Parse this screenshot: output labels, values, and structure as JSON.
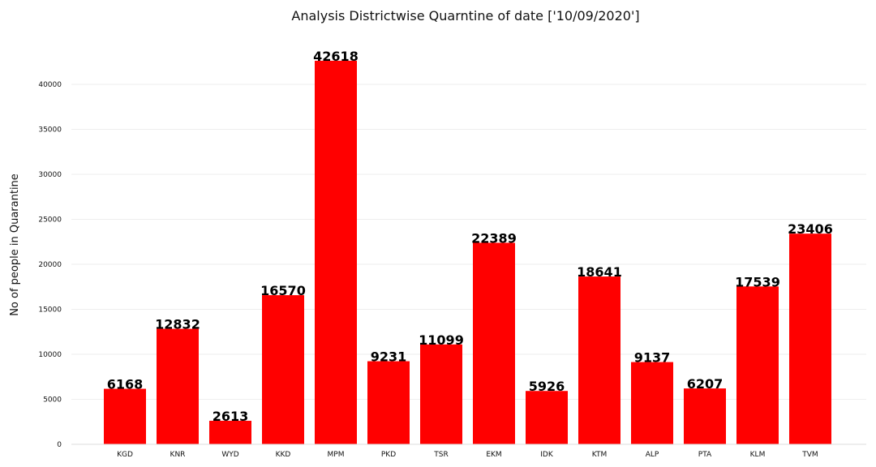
{
  "chart_data": {
    "type": "bar",
    "title": "Analysis Districtwise Quarntine of date ['10/09/2020']",
    "xlabel": "",
    "ylabel": "No of people in Quarantine",
    "categories": [
      "KGD",
      "KNR",
      "WYD",
      "KKD",
      "MPM",
      "PKD",
      "TSR",
      "EKM",
      "IDK",
      "KTM",
      "ALP",
      "PTA",
      "KLM",
      "TVM"
    ],
    "values": [
      6168,
      12832,
      2613,
      16570,
      42618,
      9231,
      11099,
      22389,
      5926,
      18641,
      9137,
      6207,
      17539,
      23406
    ],
    "ylim": [
      0,
      45000
    ],
    "yticks": [
      0,
      5000,
      10000,
      15000,
      20000,
      25000,
      30000,
      35000,
      40000
    ],
    "grid": true,
    "bar_color": "#ff0000",
    "data_labels": true
  }
}
